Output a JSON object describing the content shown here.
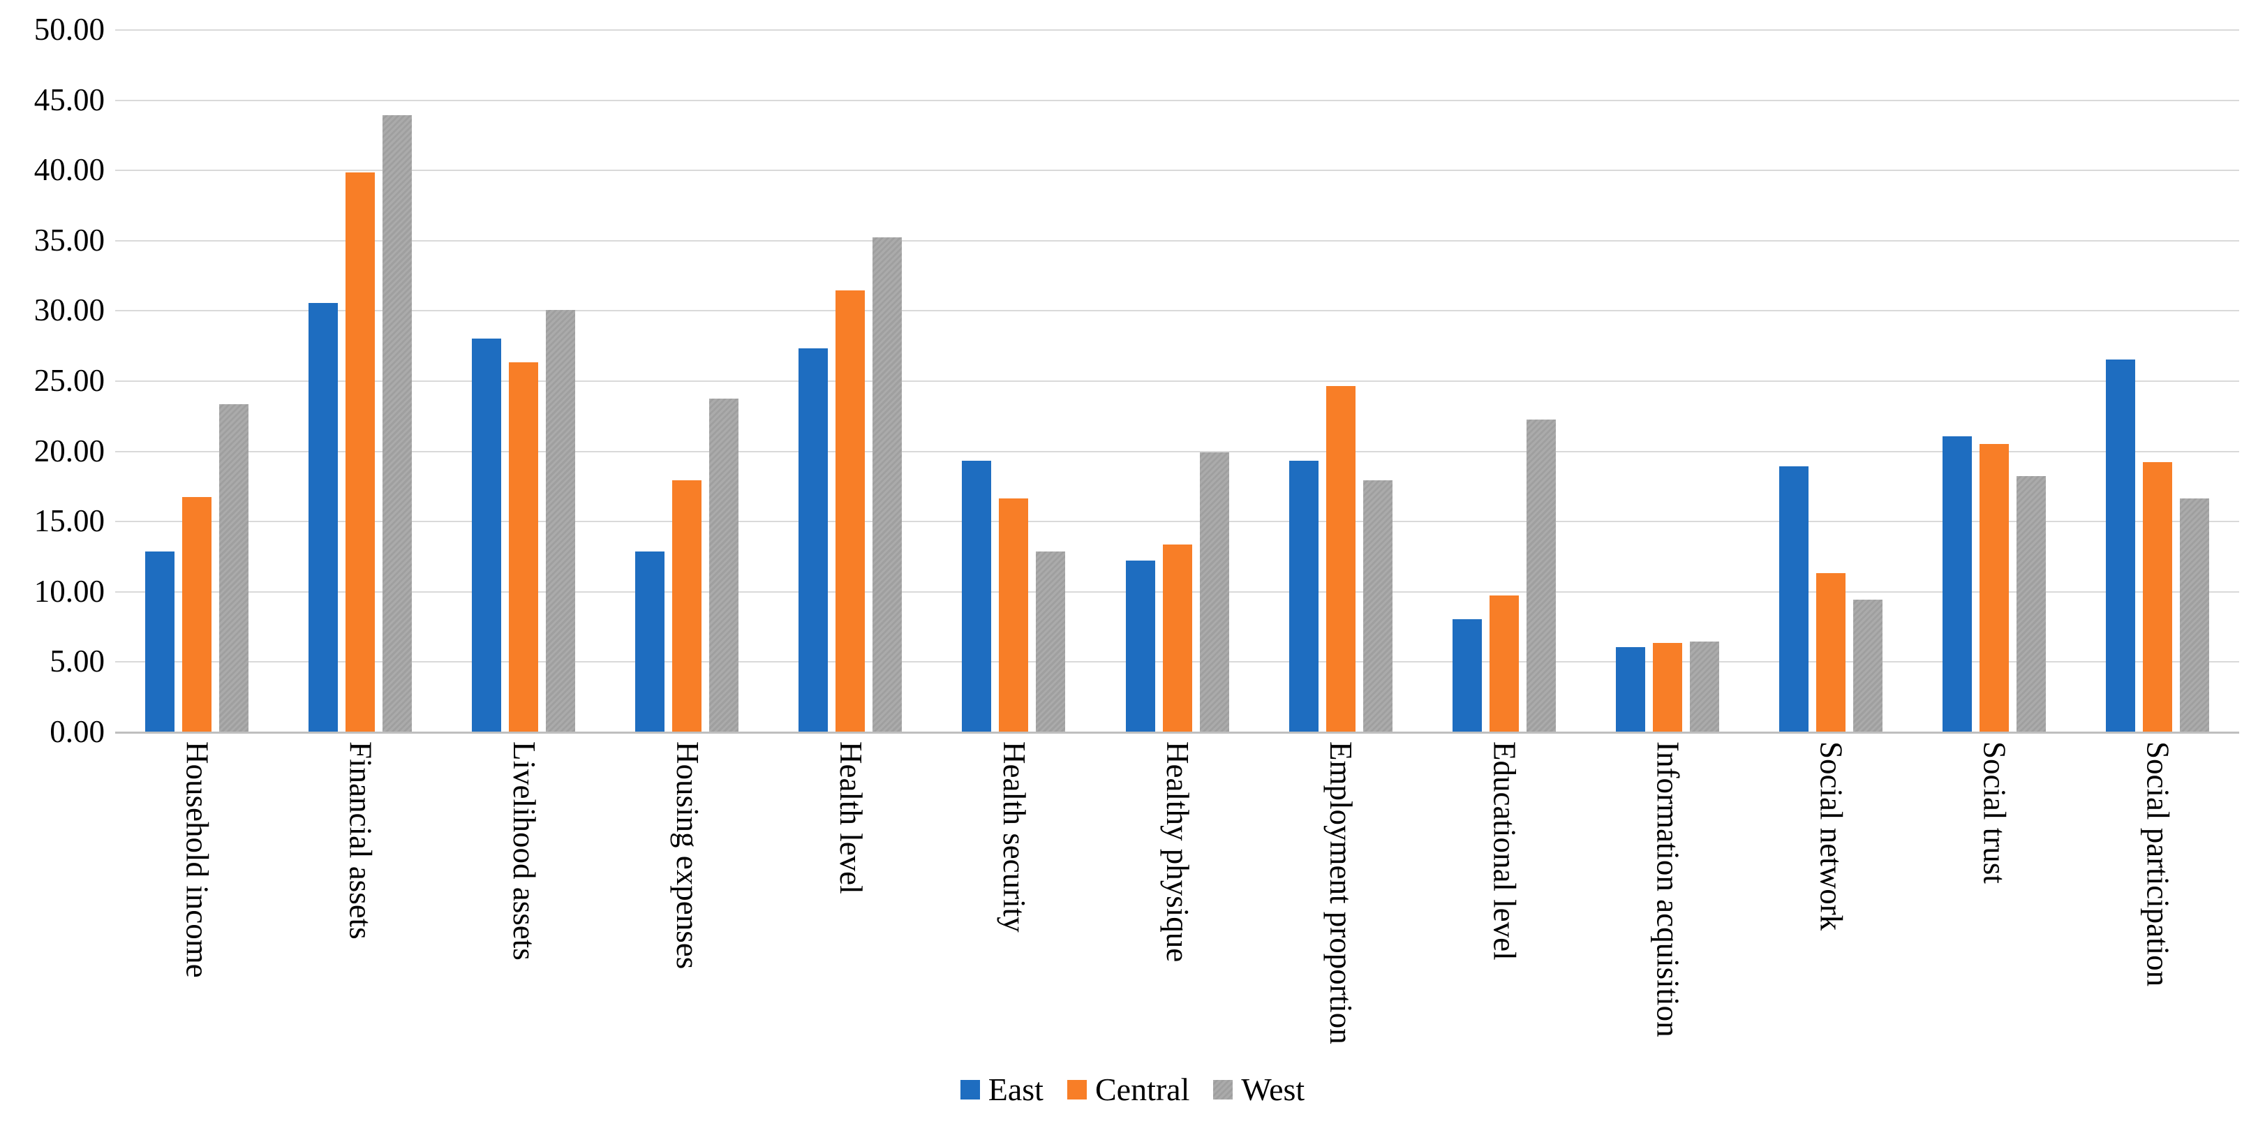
{
  "chart_data": {
    "type": "bar",
    "title": "",
    "xlabel": "",
    "ylabel": "",
    "categories": [
      "Household income",
      "Financial assets",
      "Livelihood assets",
      "Housing expenses",
      "Health level",
      "Health security",
      "Healthy physique",
      "Employment proportion",
      "Educational level",
      "Information acquisition",
      "Social network",
      "Social trust",
      "Social participation"
    ],
    "series": [
      {
        "name": "East",
        "color": "#1E6DC0",
        "values": [
          12.8,
          30.5,
          28.0,
          12.8,
          27.3,
          19.3,
          12.2,
          19.3,
          8.0,
          6.0,
          18.9,
          21.0,
          26.5
        ]
      },
      {
        "name": "Central",
        "color": "#F87E27",
        "values": [
          16.7,
          39.8,
          26.3,
          17.9,
          31.4,
          16.6,
          13.3,
          24.6,
          9.7,
          6.3,
          11.3,
          20.5,
          19.2
        ]
      },
      {
        "name": "West",
        "color": "#ABABAB",
        "pattern": true,
        "pattern_color": "#9F9F9F",
        "values": [
          23.3,
          43.9,
          30.0,
          23.7,
          35.2,
          12.8,
          19.9,
          17.9,
          22.2,
          6.4,
          9.4,
          18.2,
          16.6
        ]
      }
    ],
    "ylim": [
      0,
      50
    ],
    "ytick_step": 5,
    "ytick_labels": [
      "0.00",
      "5.00",
      "10.00",
      "15.00",
      "20.00",
      "25.00",
      "30.00",
      "35.00",
      "40.00",
      "45.00",
      "50.00"
    ],
    "grid": "horizontal",
    "legend_position": "bottom",
    "axis_color": "#BFBFBF",
    "gridline_color": "#D9D9D9"
  }
}
